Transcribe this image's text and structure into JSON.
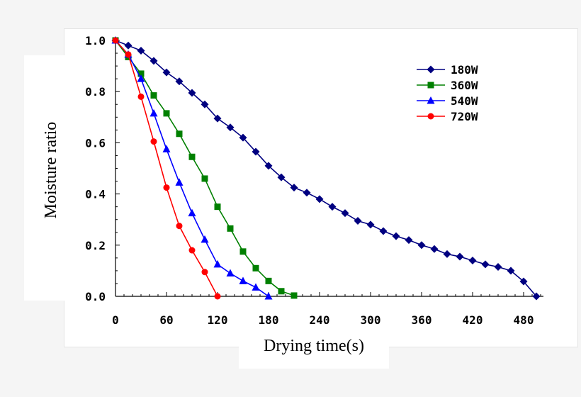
{
  "chart_data": {
    "type": "line",
    "title": "",
    "xlabel": "Drying time(s)",
    "ylabel": "Moisture ratio",
    "xlim": [
      0,
      500
    ],
    "ylim": [
      0,
      1.0
    ],
    "xticks": [
      0,
      60,
      120,
      180,
      240,
      300,
      360,
      420,
      480
    ],
    "xtick_labels": [
      "0",
      "60",
      "120",
      "180",
      "240",
      "300",
      "360",
      "420",
      "480"
    ],
    "yticks": [
      0,
      0.2,
      0.4,
      0.6,
      0.8,
      1.0
    ],
    "ytick_labels": [
      "0.0",
      "0.2",
      "0.4",
      "0.6",
      "0.8",
      "1.0"
    ],
    "grid": false,
    "legend_position": "top-right",
    "series": [
      {
        "name": "180W",
        "color": "#000080",
        "marker": "diamond",
        "x": [
          0,
          15,
          30,
          45,
          60,
          75,
          90,
          105,
          120,
          135,
          150,
          165,
          180,
          195,
          210,
          225,
          240,
          255,
          270,
          285,
          300,
          315,
          330,
          345,
          360,
          375,
          390,
          405,
          420,
          435,
          450,
          465,
          480,
          495
        ],
        "y": [
          1.0,
          0.98,
          0.96,
          0.92,
          0.875,
          0.84,
          0.795,
          0.75,
          0.695,
          0.66,
          0.62,
          0.565,
          0.51,
          0.465,
          0.425,
          0.405,
          0.38,
          0.35,
          0.325,
          0.295,
          0.28,
          0.255,
          0.235,
          0.22,
          0.2,
          0.185,
          0.165,
          0.155,
          0.14,
          0.125,
          0.115,
          0.1,
          0.058,
          0.0
        ]
      },
      {
        "name": "360W",
        "color": "#008000",
        "marker": "square",
        "x": [
          0,
          15,
          30,
          45,
          60,
          75,
          90,
          105,
          120,
          135,
          150,
          165,
          180,
          195,
          210
        ],
        "y": [
          1.0,
          0.935,
          0.87,
          0.785,
          0.715,
          0.635,
          0.545,
          0.46,
          0.35,
          0.265,
          0.175,
          0.11,
          0.06,
          0.02,
          0.003
        ]
      },
      {
        "name": "540W",
        "color": "#0000FF",
        "marker": "triangle",
        "x": [
          0,
          15,
          30,
          45,
          60,
          75,
          90,
          105,
          120,
          135,
          150,
          165,
          180
        ],
        "y": [
          1.0,
          0.945,
          0.85,
          0.715,
          0.575,
          0.445,
          0.325,
          0.222,
          0.125,
          0.09,
          0.06,
          0.035,
          0.0
        ]
      },
      {
        "name": "720W",
        "color": "#FF0000",
        "marker": "circle",
        "x": [
          0,
          15,
          30,
          45,
          60,
          75,
          90,
          105,
          120
        ],
        "y": [
          1.0,
          0.945,
          0.78,
          0.605,
          0.425,
          0.275,
          0.18,
          0.095,
          0.0
        ]
      }
    ]
  }
}
